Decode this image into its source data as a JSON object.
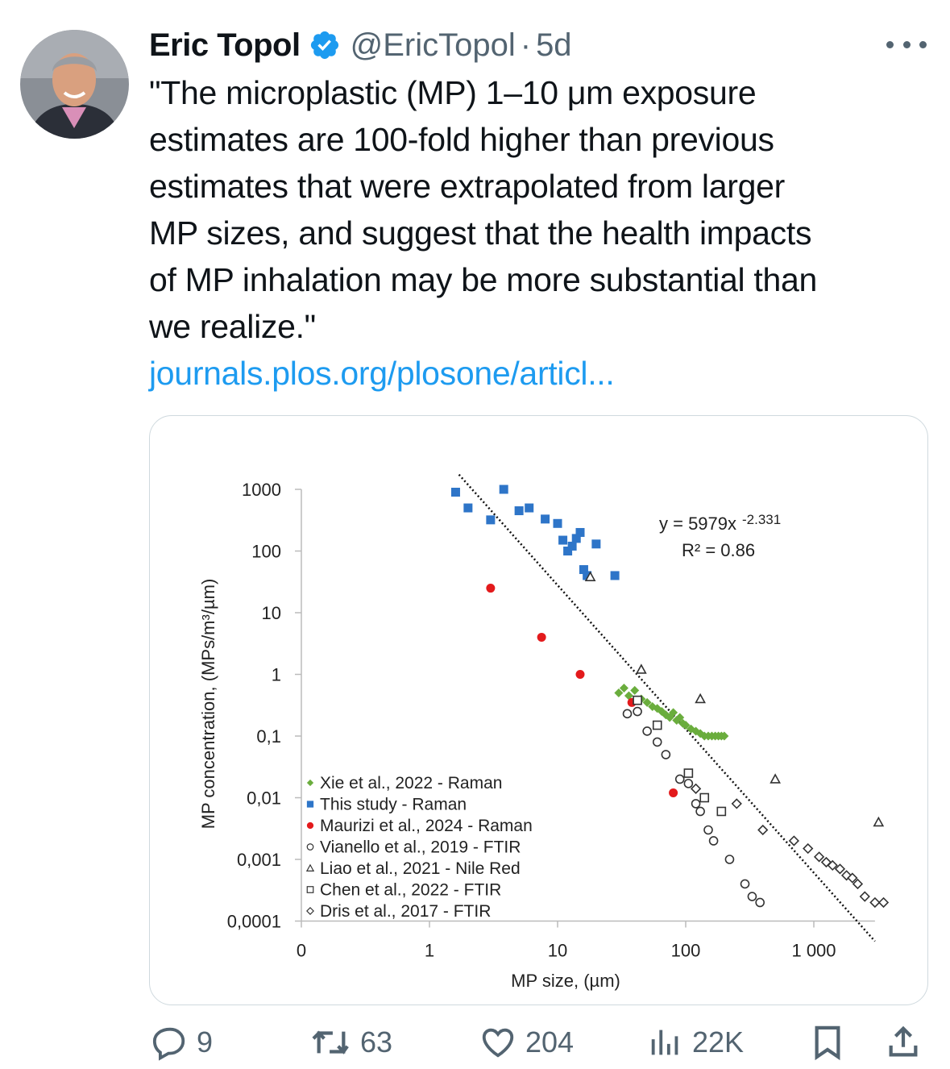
{
  "author": {
    "name": "Eric Topol",
    "handle": "@EricTopol",
    "separator": "·",
    "time": "5d",
    "verified_icon": "verified-badge-icon",
    "avatar_icon": "person-avatar"
  },
  "tweet": {
    "lines": [
      "\"The microplastic (MP) 1–10 μm exposure",
      "estimates are 100-fold higher than previous",
      "estimates that were extrapolated from larger",
      "MP sizes, and suggest that the health impacts",
      "of MP inhalation may be more substantial than",
      "we realize.\""
    ],
    "link": "journals.plos.org/plosone/articl..."
  },
  "actions": {
    "reply_count": "9",
    "retweet_count": "63",
    "like_count": "204",
    "views_count": "22K",
    "icons": [
      "reply-icon",
      "retweet-icon",
      "like-icon",
      "views-icon",
      "bookmark-icon",
      "share-icon"
    ]
  },
  "chart_data": {
    "type": "scatter",
    "xlabel": "MP size, (µm)",
    "ylabel": "MP concentration, (MPs/m³/µm)",
    "x_scale": "log",
    "y_scale": "log",
    "x_tick_labels": [
      "0",
      "1",
      "10",
      "100",
      "1 000"
    ],
    "y_tick_labels": [
      "1000",
      "100",
      "10",
      "1",
      "0,1",
      "0,01",
      "0,001",
      "0,0001"
    ],
    "equation": "y = 5979x",
    "exponent": "-2.331",
    "r_squared": "R² = 0.86",
    "trendline": {
      "a": 5979,
      "b": -2.331,
      "x_from": 1.7,
      "x_to": 3000
    },
    "series": [
      {
        "name": "Xie et al., 2022 - Raman",
        "marker": "diamond-filled",
        "color": "#6aad3d",
        "points": [
          [
            30,
            0.5
          ],
          [
            33,
            0.6
          ],
          [
            36,
            0.45
          ],
          [
            40,
            0.55
          ],
          [
            45,
            0.4
          ],
          [
            50,
            0.35
          ],
          [
            55,
            0.3
          ],
          [
            60,
            0.28
          ],
          [
            65,
            0.25
          ],
          [
            70,
            0.22
          ],
          [
            75,
            0.2
          ],
          [
            80,
            0.24
          ],
          [
            85,
            0.18
          ],
          [
            90,
            0.2
          ],
          [
            95,
            0.16
          ],
          [
            100,
            0.15
          ],
          [
            110,
            0.13
          ],
          [
            120,
            0.12
          ],
          [
            130,
            0.11
          ],
          [
            140,
            0.1
          ],
          [
            150,
            0.1
          ],
          [
            160,
            0.1
          ],
          [
            170,
            0.1
          ],
          [
            180,
            0.1
          ],
          [
            190,
            0.1
          ],
          [
            200,
            0.1
          ]
        ]
      },
      {
        "name": "This study - Raman",
        "marker": "square-filled",
        "color": "#2e75c8",
        "points": [
          [
            1.6,
            900
          ],
          [
            2,
            500
          ],
          [
            3,
            320
          ],
          [
            3.8,
            1000
          ],
          [
            5,
            450
          ],
          [
            6,
            500
          ],
          [
            8,
            330
          ],
          [
            10,
            280
          ],
          [
            11,
            150
          ],
          [
            12,
            100
          ],
          [
            13,
            120
          ],
          [
            14,
            160
          ],
          [
            15,
            200
          ],
          [
            16,
            50
          ],
          [
            17,
            40
          ],
          [
            20,
            130
          ],
          [
            28,
            40
          ]
        ]
      },
      {
        "name": "Maurizi et al., 2024 - Raman",
        "marker": "circle-filled",
        "color": "#e31a1c",
        "points": [
          [
            3,
            25
          ],
          [
            7.5,
            4
          ],
          [
            15,
            1.0
          ],
          [
            38,
            0.35
          ],
          [
            80,
            0.012
          ]
        ]
      },
      {
        "name": "Vianello et al., 2019 - FTIR",
        "marker": "circle-open",
        "color": "#333333",
        "points": [
          [
            35,
            0.23
          ],
          [
            42,
            0.25
          ],
          [
            50,
            0.12
          ],
          [
            60,
            0.08
          ],
          [
            70,
            0.05
          ],
          [
            90,
            0.02
          ],
          [
            105,
            0.017
          ],
          [
            120,
            0.008
          ],
          [
            130,
            0.006
          ],
          [
            150,
            0.003
          ],
          [
            165,
            0.002
          ],
          [
            220,
            0.001
          ],
          [
            290,
            0.0004
          ],
          [
            330,
            0.00025
          ],
          [
            380,
            0.0002
          ]
        ]
      },
      {
        "name": "Liao et al., 2021 - Nile Red",
        "marker": "triangle-open",
        "color": "#333333",
        "points": [
          [
            18,
            38
          ],
          [
            45,
            1.2
          ],
          [
            130,
            0.4
          ],
          [
            500,
            0.02
          ],
          [
            3200,
            0.004
          ]
        ]
      },
      {
        "name": "Chen et al., 2022 - FTIR",
        "marker": "square-open",
        "color": "#333333",
        "points": [
          [
            42,
            0.38
          ],
          [
            60,
            0.15
          ],
          [
            105,
            0.025
          ],
          [
            140,
            0.01
          ],
          [
            190,
            0.006
          ]
        ]
      },
      {
        "name": "Dris et al., 2017 - FTIR",
        "marker": "diamond-open",
        "color": "#333333",
        "points": [
          [
            120,
            0.014
          ],
          [
            250,
            0.008
          ],
          [
            400,
            0.003
          ],
          [
            700,
            0.002
          ],
          [
            900,
            0.0015
          ],
          [
            1100,
            0.0011
          ],
          [
            1250,
            0.0009
          ],
          [
            1400,
            0.0008
          ],
          [
            1600,
            0.0007
          ],
          [
            1800,
            0.00055
          ],
          [
            2000,
            0.0005
          ],
          [
            2200,
            0.0004
          ],
          [
            2500,
            0.00025
          ],
          [
            3000,
            0.0002
          ],
          [
            3500,
            0.0002
          ]
        ]
      }
    ]
  }
}
